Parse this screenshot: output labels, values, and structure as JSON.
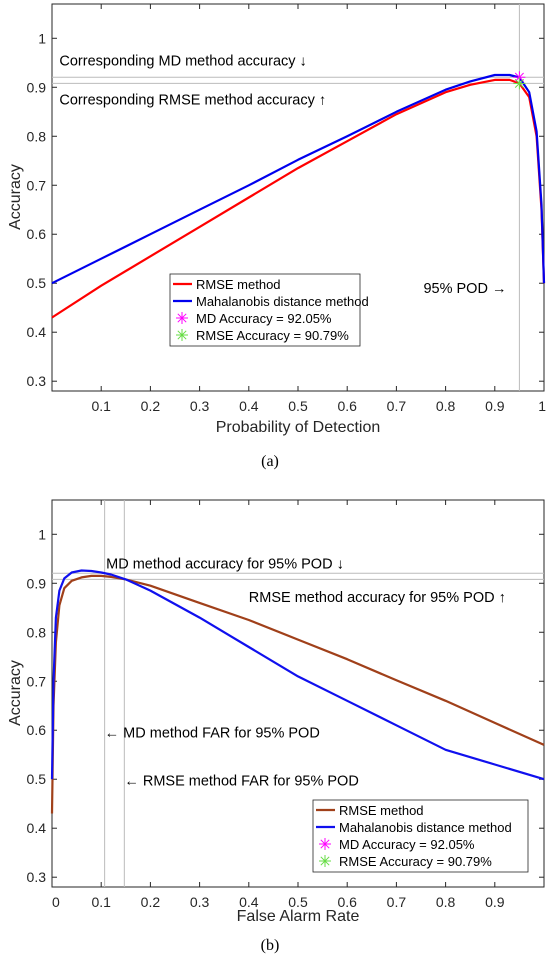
{
  "chart_data": [
    {
      "type": "line",
      "xlabel": "Probability of Detection",
      "ylabel": "Accuracy",
      "xlim": [
        0,
        1
      ],
      "ylim": [
        0.28,
        1.07
      ],
      "xticks": [
        "0.1",
        "0.2",
        "0.3",
        "0.4",
        "0.5",
        "0.6",
        "0.7",
        "0.8",
        "0.9",
        "1"
      ],
      "yticks": [
        "0.3",
        "0.4",
        "0.5",
        "0.6",
        "0.7",
        "0.8",
        "0.9",
        "1"
      ],
      "grid": false,
      "legend_position": "center",
      "series": [
        {
          "name": "RMSE method",
          "color": "#ff0000",
          "x": [
            0,
            0.1,
            0.2,
            0.3,
            0.4,
            0.5,
            0.6,
            0.7,
            0.8,
            0.85,
            0.9,
            0.93,
            0.95,
            0.97,
            0.985,
            0.995,
            1
          ],
          "y": [
            0.43,
            0.495,
            0.555,
            0.615,
            0.675,
            0.735,
            0.79,
            0.845,
            0.89,
            0.905,
            0.915,
            0.915,
            0.908,
            0.88,
            0.8,
            0.65,
            0.5
          ]
        },
        {
          "name": "Mahalanobis distance method",
          "color": "#0000ee",
          "x": [
            0,
            0.1,
            0.2,
            0.3,
            0.4,
            0.5,
            0.6,
            0.7,
            0.8,
            0.85,
            0.9,
            0.93,
            0.95,
            0.97,
            0.985,
            0.995,
            1
          ],
          "y": [
            0.5,
            0.55,
            0.6,
            0.65,
            0.7,
            0.752,
            0.8,
            0.85,
            0.895,
            0.912,
            0.925,
            0.925,
            0.92,
            0.89,
            0.81,
            0.66,
            0.5
          ]
        },
        {
          "name": "MD Accuracy = 92.05%",
          "color": "#ff00ff",
          "marker": "asterisk",
          "x": [
            0.95
          ],
          "y": [
            0.9205
          ]
        },
        {
          "name": "RMSE Accuracy = 90.79%",
          "color": "#66dd44",
          "marker": "asterisk",
          "x": [
            0.95
          ],
          "y": [
            0.9079
          ]
        }
      ],
      "ref_lines": {
        "h": [
          0.9205,
          0.9079
        ],
        "v": [
          0.95
        ]
      },
      "annotations": [
        {
          "text": "Corresponding MD method accuracy ↓",
          "x": 0.015,
          "y": 0.955
        },
        {
          "text": "Corresponding RMSE method accuracy ↑",
          "x": 0.015,
          "y": 0.875
        },
        {
          "text": "95% POD →",
          "x": 0.755,
          "y": 0.49
        }
      ],
      "caption": "(a)"
    },
    {
      "type": "line",
      "xlabel": "False Alarm Rate",
      "ylabel": "Accuracy",
      "xlim": [
        0,
        1
      ],
      "ylim": [
        0.28,
        1.07
      ],
      "xticks": [
        "0",
        "0.1",
        "0.2",
        "0.3",
        "0.4",
        "0.5",
        "0.6",
        "0.7",
        "0.8",
        "0.9"
      ],
      "yticks": [
        "0.3",
        "0.4",
        "0.5",
        "0.6",
        "0.7",
        "0.8",
        "0.9",
        "1"
      ],
      "grid": false,
      "legend_position": "bottom-right",
      "series": [
        {
          "name": "RMSE method",
          "color": "#a0401a",
          "x": [
            0,
            0.003,
            0.008,
            0.015,
            0.025,
            0.04,
            0.06,
            0.08,
            0.1,
            0.12,
            0.15,
            0.2,
            0.3,
            0.4,
            0.5,
            0.6,
            0.7,
            0.8,
            0.9,
            1
          ],
          "y": [
            0.43,
            0.65,
            0.78,
            0.855,
            0.89,
            0.905,
            0.912,
            0.915,
            0.915,
            0.913,
            0.908,
            0.895,
            0.86,
            0.825,
            0.785,
            0.745,
            0.702,
            0.66,
            0.615,
            0.57
          ]
        },
        {
          "name": "Mahalanobis distance method",
          "color": "#1010ee",
          "x": [
            0,
            0.003,
            0.008,
            0.015,
            0.025,
            0.04,
            0.06,
            0.08,
            0.1,
            0.12,
            0.15,
            0.2,
            0.3,
            0.4,
            0.5,
            0.6,
            0.7,
            0.8,
            0.9,
            1
          ],
          "y": [
            0.5,
            0.7,
            0.83,
            0.885,
            0.91,
            0.922,
            0.926,
            0.925,
            0.922,
            0.918,
            0.908,
            0.885,
            0.83,
            0.77,
            0.71,
            0.66,
            0.61,
            0.56,
            0.53,
            0.5
          ]
        },
        {
          "name": "MD Accuracy = 92.05%",
          "color": "#ff00ff",
          "marker": "asterisk",
          "x": [],
          "y": []
        },
        {
          "name": "RMSE Accuracy = 90.79%",
          "color": "#66dd44",
          "marker": "asterisk",
          "x": [],
          "y": []
        }
      ],
      "ref_lines": {
        "h": [
          0.9205,
          0.9079
        ],
        "v": [
          0.107,
          0.147
        ]
      },
      "annotations": [
        {
          "text": "MD method accuracy for 95% POD ↓",
          "x": 0.11,
          "y": 0.94
        },
        {
          "text": "RMSE method accuracy for 95% POD ↑",
          "x": 0.4,
          "y": 0.872
        },
        {
          "text": "← MD method FAR for 95% POD",
          "x": 0.107,
          "y": 0.595
        },
        {
          "text": "← RMSE method FAR for 95% POD",
          "x": 0.147,
          "y": 0.497
        }
      ],
      "caption": "(b)"
    }
  ]
}
